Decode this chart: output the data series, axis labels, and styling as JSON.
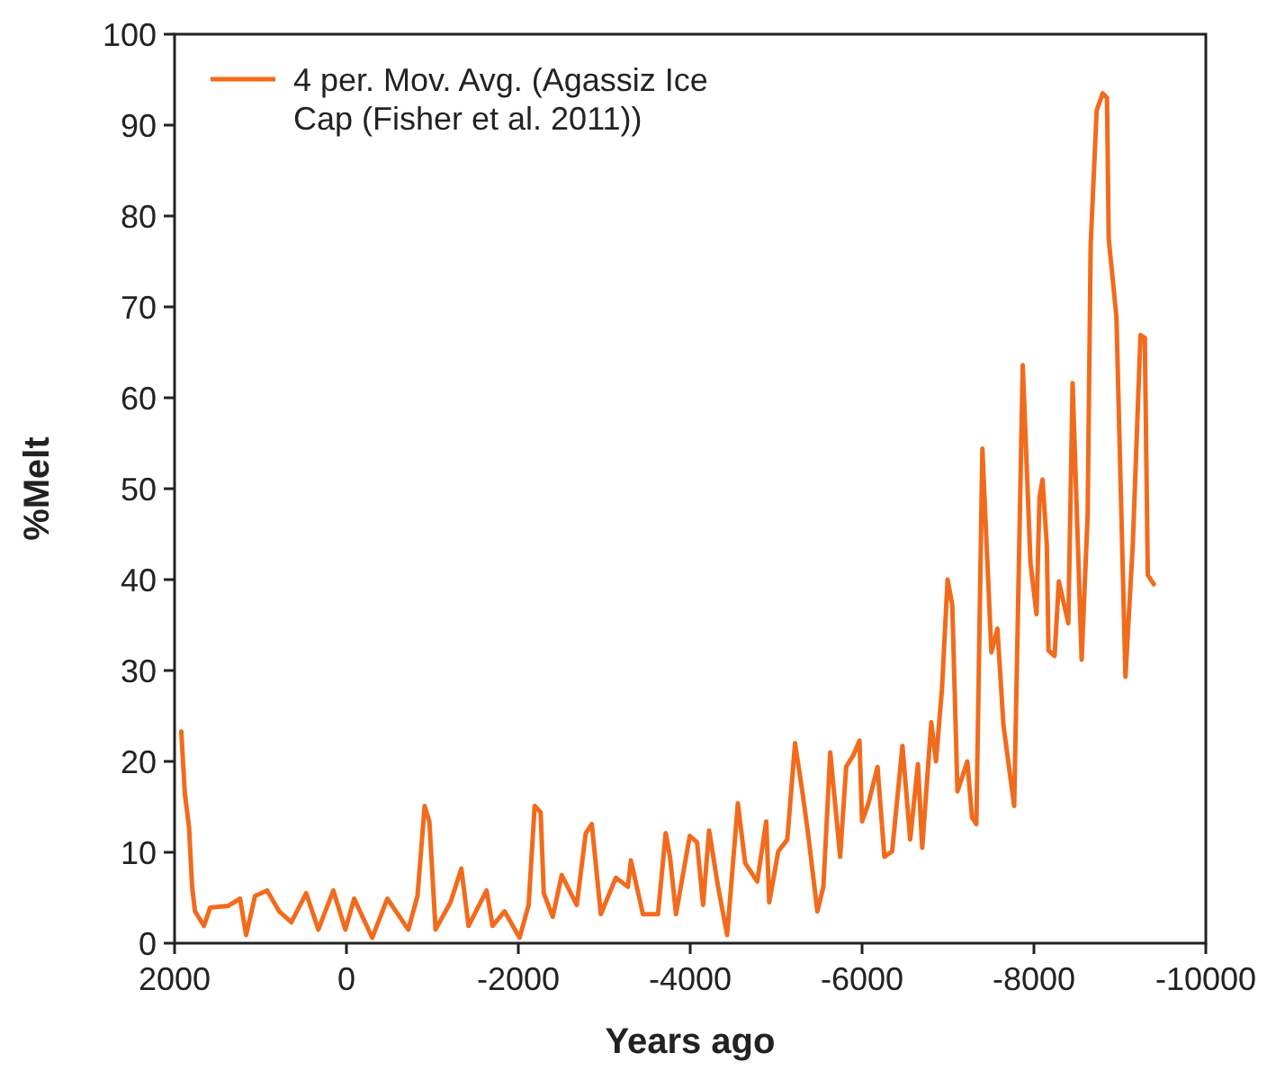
{
  "chart_data": {
    "type": "line",
    "xlabel": "Years ago",
    "ylabel": "%Melt",
    "xlim": [
      2000,
      -10000
    ],
    "xticks": [
      2000,
      0,
      -2000,
      -4000,
      -6000,
      -8000,
      -10000
    ],
    "ylim": [
      0,
      100
    ],
    "yticks": [
      0,
      10,
      20,
      30,
      40,
      50,
      60,
      70,
      80,
      90,
      100
    ],
    "legend": "top left",
    "marker": "none",
    "line_style": "solid",
    "grid": false,
    "series": [
      {
        "name": "4 per. Mov. Avg. (Agassiz Ice Cap (Fisher et al. 2011))",
        "color": "#f26b1d",
        "x": [
          1922,
          1880,
          1832,
          1796,
          1762,
          1658,
          1587,
          1377,
          1238,
          1168,
          1063,
          923,
          782,
          642,
          468,
          327,
          153,
          13,
          -90,
          -300,
          -476,
          -720,
          -827,
          -910,
          -965,
          -1037,
          -1211,
          -1337,
          -1421,
          -1631,
          -1700,
          -1840,
          -2015,
          -2120,
          -2190,
          -2260,
          -2296,
          -2400,
          -2505,
          -2680,
          -2785,
          -2855,
          -2960,
          -3135,
          -3275,
          -3310,
          -3450,
          -3625,
          -3715,
          -3765,
          -3835,
          -3995,
          -4080,
          -4150,
          -4220,
          -4325,
          -4430,
          -4555,
          -4640,
          -4780,
          -4885,
          -4920,
          -5025,
          -5130,
          -5220,
          -5305,
          -5375,
          -5480,
          -5550,
          -5630,
          -5745,
          -5815,
          -5900,
          -5970,
          -6000,
          -6075,
          -6180,
          -6260,
          -6350,
          -6470,
          -6560,
          -6650,
          -6700,
          -6805,
          -6860,
          -6930,
          -6995,
          -7050,
          -7110,
          -7225,
          -7280,
          -7330,
          -7400,
          -7505,
          -7575,
          -7645,
          -7770,
          -7870,
          -7960,
          -8030,
          -8065,
          -8100,
          -8150,
          -8170,
          -8240,
          -8290,
          -8400,
          -8450,
          -8555,
          -8625,
          -8660,
          -8730,
          -8800,
          -8850,
          -8870,
          -8960,
          -9065,
          -9150,
          -9240,
          -9290,
          -9325,
          -9395
        ],
        "values": [
          23.3,
          16.4,
          12.8,
          6.2,
          3.5,
          1.9,
          3.9,
          4.1,
          4.9,
          0.9,
          5.2,
          5.8,
          3.5,
          2.3,
          5.5,
          1.5,
          5.8,
          1.5,
          4.9,
          0.6,
          4.9,
          1.5,
          5.2,
          15.1,
          13.4,
          1.5,
          4.5,
          8.2,
          1.9,
          5.8,
          1.9,
          3.5,
          0.6,
          4.2,
          15.1,
          14.4,
          5.5,
          2.9,
          7.5,
          4.2,
          12.1,
          13.1,
          3.2,
          7.2,
          6.2,
          9.1,
          3.2,
          3.2,
          12.1,
          9.5,
          3.2,
          11.8,
          11.1,
          4.2,
          12.4,
          6.2,
          0.9,
          15.4,
          8.8,
          6.8,
          13.4,
          4.5,
          10.1,
          11.4,
          22,
          16.7,
          11.8,
          3.5,
          6.2,
          21,
          9.5,
          19.4,
          20.7,
          22.3,
          13.4,
          15.4,
          19.4,
          9.5,
          10.1,
          21.7,
          11.4,
          19.7,
          10.5,
          24.3,
          20,
          28,
          40,
          37.2,
          16.7,
          20,
          13.8,
          13.1,
          54.4,
          32,
          34.6,
          24,
          15.1,
          63.6,
          41.8,
          36.2,
          49.1,
          51,
          43.8,
          32.2,
          31.6,
          39.8,
          35.2,
          61.6,
          31.2,
          47.1,
          76.8,
          91.6,
          93.5,
          93,
          77.5,
          68.9,
          29.3,
          43.8,
          66.9,
          66.6,
          40.5,
          39.5
        ]
      }
    ]
  }
}
